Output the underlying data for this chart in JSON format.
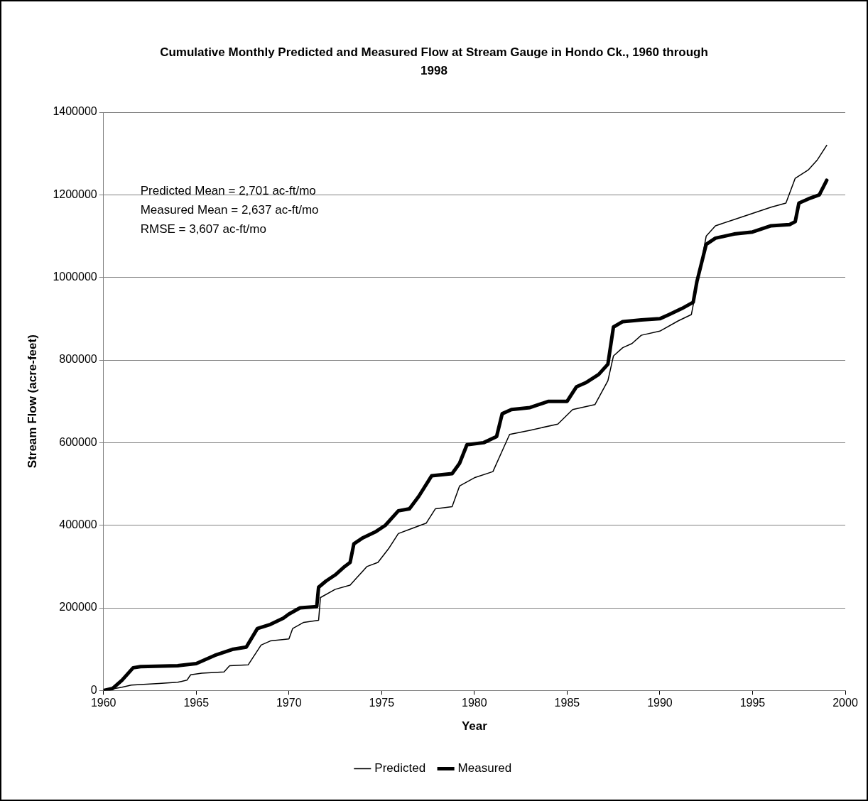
{
  "chart_data": {
    "type": "line",
    "title": "Cumulative Monthly Predicted and Measured Flow at Stream Gauge in Hondo Ck., 1960 through 1998",
    "xlabel": "Year",
    "ylabel": "Stream Flow (acre-feet)",
    "xlim": [
      1960,
      2000
    ],
    "xticks": [
      1960,
      1965,
      1970,
      1975,
      1980,
      1985,
      1990,
      1995,
      2000
    ],
    "ylim": [
      0,
      1400000
    ],
    "yticks": [
      0,
      200000,
      400000,
      600000,
      800000,
      1000000,
      1200000,
      1400000
    ],
    "grid": "y",
    "legend": "bottom",
    "marker": "none",
    "line_style": "solid",
    "annotations": [
      "Predicted Mean = 2,701 ac-ft/mo",
      "Measured Mean = 2,637 ac-ft/mo",
      "RMSE = 3,607 ac-ft/mo"
    ],
    "series": [
      {
        "name": "Predicted",
        "color": "#000000",
        "x": [
          1960,
          1961,
          1961.5,
          1963,
          1964,
          1964.5,
          1964.7,
          1965.3,
          1966.5,
          1966.8,
          1967.8,
          1968.5,
          1969,
          1970,
          1970.2,
          1970.8,
          1971.6,
          1971.7,
          1972.5,
          1973.3,
          1973.6,
          1974.2,
          1974.8,
          1975.4,
          1975.9,
          1976.5,
          1977.4,
          1977.9,
          1978.8,
          1979.2,
          1980,
          1981,
          1981.5,
          1981.9,
          1983,
          1984.5,
          1985.3,
          1986.5,
          1987.2,
          1987.5,
          1988,
          1988.5,
          1989,
          1990,
          1991,
          1991.7,
          1992,
          1992.5,
          1993,
          1994,
          1995,
          1996,
          1996.8,
          1997.3,
          1998,
          1998.5,
          1999
        ],
        "values": [
          0,
          8000,
          13000,
          17000,
          20000,
          25000,
          38000,
          42000,
          45000,
          60000,
          62000,
          110000,
          120000,
          125000,
          150000,
          165000,
          170000,
          225000,
          245000,
          255000,
          270000,
          300000,
          310000,
          345000,
          380000,
          390000,
          405000,
          440000,
          445000,
          495000,
          515000,
          530000,
          580000,
          620000,
          630000,
          645000,
          680000,
          692000,
          750000,
          810000,
          830000,
          840000,
          860000,
          870000,
          895000,
          910000,
          980000,
          1100000,
          1125000,
          1140000,
          1155000,
          1170000,
          1180000,
          1240000,
          1260000,
          1285000,
          1320000
        ]
      },
      {
        "name": "Measured",
        "color": "#000000",
        "x": [
          1960,
          1960.5,
          1961,
          1961.6,
          1962,
          1964,
          1965,
          1965.5,
          1966,
          1967,
          1967.7,
          1968.3,
          1969,
          1969.7,
          1970,
          1970.6,
          1971.5,
          1971.6,
          1972,
          1972.5,
          1973,
          1973.3,
          1973.5,
          1974,
          1974.7,
          1975.2,
          1975.9,
          1976.5,
          1977,
          1977.7,
          1978.8,
          1979.2,
          1979.6,
          1980.5,
          1981.2,
          1981.5,
          1982,
          1983,
          1984,
          1985,
          1985.5,
          1986,
          1986.7,
          1987.2,
          1987.5,
          1988,
          1989,
          1990,
          1990.5,
          1991.2,
          1991.8,
          1992,
          1992.5,
          1993,
          1994,
          1995,
          1996,
          1997,
          1997.3,
          1997.5,
          1998,
          1998.6,
          1999
        ],
        "values": [
          0,
          5000,
          25000,
          55000,
          58000,
          60000,
          65000,
          75000,
          85000,
          100000,
          105000,
          150000,
          160000,
          175000,
          185000,
          200000,
          203000,
          250000,
          265000,
          280000,
          300000,
          310000,
          355000,
          370000,
          385000,
          400000,
          435000,
          440000,
          470000,
          520000,
          525000,
          550000,
          595000,
          600000,
          615000,
          670000,
          680000,
          685000,
          700000,
          700000,
          735000,
          745000,
          765000,
          790000,
          880000,
          893000,
          897000,
          900000,
          910000,
          925000,
          940000,
          990000,
          1080000,
          1095000,
          1105000,
          1110000,
          1125000,
          1128000,
          1135000,
          1180000,
          1190000,
          1200000,
          1235000
        ]
      }
    ]
  }
}
